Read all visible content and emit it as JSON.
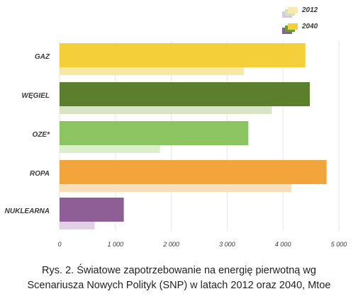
{
  "chart_data": {
    "type": "bar",
    "orientation": "horizontal",
    "categories": [
      "GAZ",
      "WĘGIEL",
      "OZE*",
      "ROPA",
      "NUKLEARNA"
    ],
    "series": [
      {
        "name": "2012",
        "values": [
          3300,
          3800,
          1800,
          4150,
          630
        ]
      },
      {
        "name": "2040",
        "values": [
          4400,
          4480,
          3380,
          4780,
          1150
        ]
      }
    ],
    "xlim": [
      0,
      5000
    ],
    "xticks": [
      0,
      1000,
      2000,
      3000,
      4000,
      5000
    ],
    "xtick_labels": [
      "0",
      "1 000",
      "2 000",
      "3 000",
      "4 000",
      "5 000"
    ],
    "grid": "vertical",
    "legend_position": "top-right",
    "colors": {
      "main": [
        "#f5cf3a",
        "#5b7f2c",
        "#8cc461",
        "#f1a53b",
        "#8e5f97"
      ],
      "faint": [
        "#f7e9a2",
        "#d9e4c3",
        "#dcefcc",
        "#f8dfb8",
        "#e2d1e6"
      ],
      "grid": "#e6e6e6"
    }
  },
  "caption": {
    "line1": "Rys. 2. Światowe zapotrzebowanie na energię pierwotną wg",
    "line2": "Scenariusza Nowych Polityk (SNP) w latach 2012 oraz 2040, Mtoe"
  }
}
